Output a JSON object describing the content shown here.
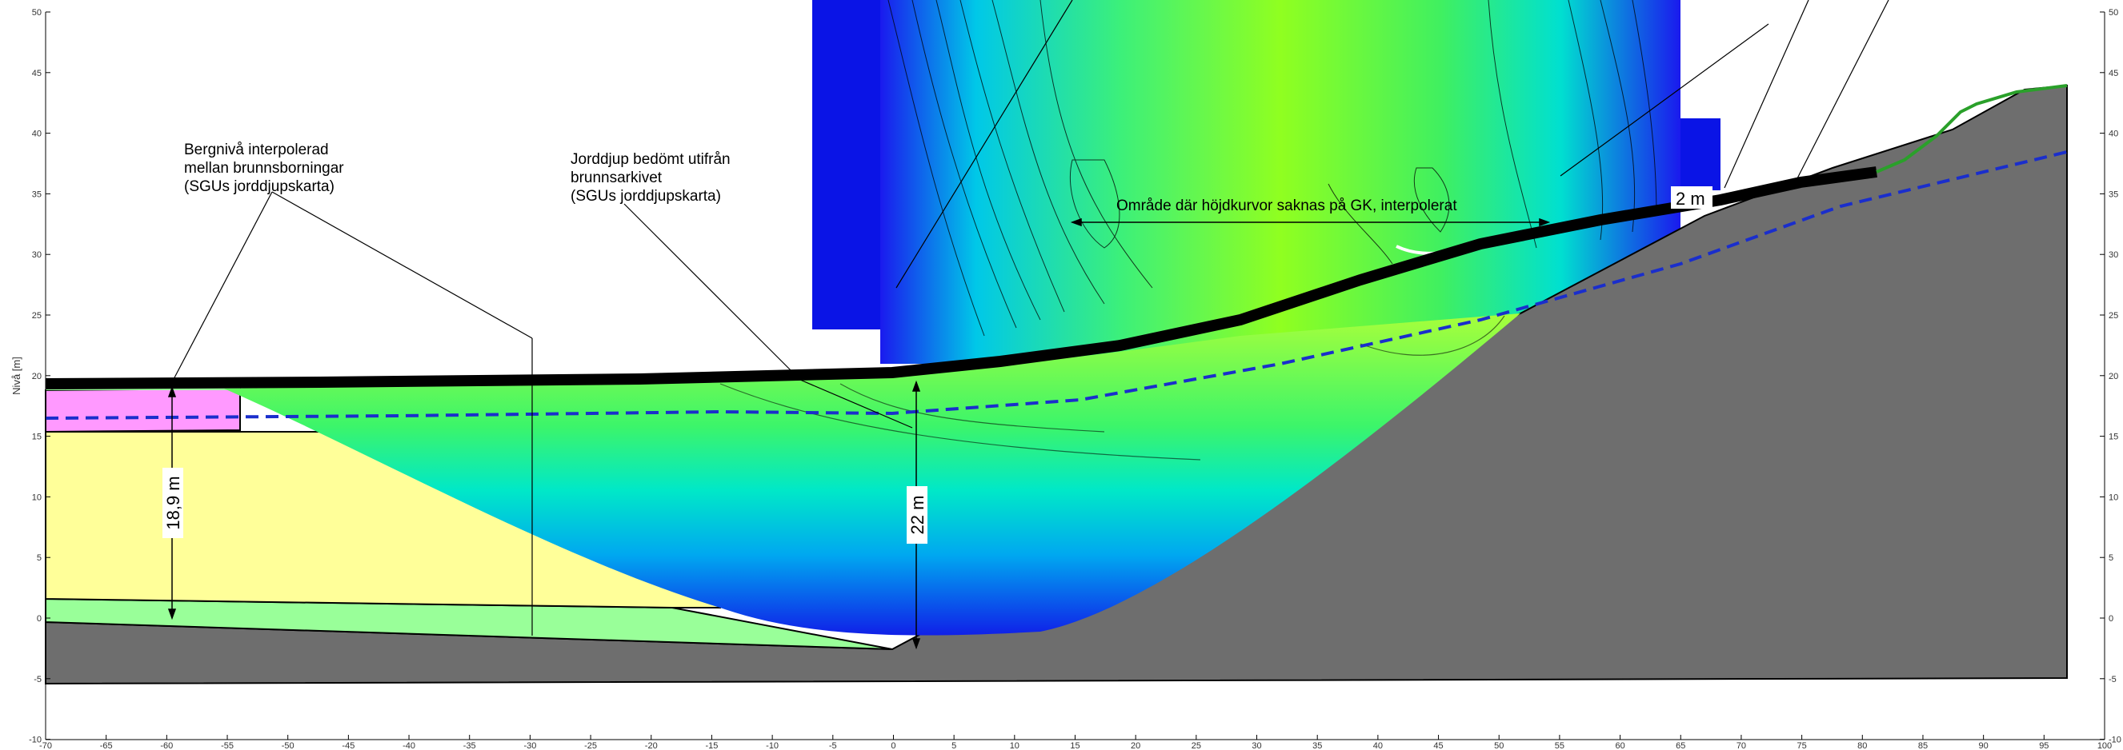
{
  "axes": {
    "y_label": "Nivå [m]",
    "x_ticks": [
      "-70",
      "-65",
      "-60",
      "-55",
      "-50",
      "-45",
      "-40",
      "-35",
      "-30",
      "-25",
      "-20",
      "-15",
      "-10",
      "-5",
      "0",
      "5",
      "10",
      "15",
      "20",
      "25",
      "30",
      "35",
      "40",
      "45",
      "50",
      "55",
      "60",
      "65",
      "70",
      "75",
      "80",
      "85",
      "90",
      "95",
      "100"
    ],
    "y_ticks": [
      "50",
      "45",
      "40",
      "35",
      "30",
      "25",
      "20",
      "15",
      "10",
      "5",
      "0",
      "-5",
      "-10"
    ]
  },
  "annotations": {
    "bedrock_note": [
      "Bergnivå interpolerad",
      "mellan  brunnsborningar",
      "(SGUs jorddjupskarta)"
    ],
    "soil_depth_note": [
      "Jorddjup bedömt utifrån",
      "brunnsarkivet",
      "(SGUs jorddjupskarta)"
    ],
    "interpolated_area_note": "Område där höjdkurvor saknas på GK, interpolerat",
    "dim_18_9": "18,9 m",
    "dim_22": "22 m",
    "dim_2": "2 m"
  },
  "colors": {
    "bedrock": "#6e6e6e",
    "clay_yellow": "#ffff99",
    "dry_crust_pink": "#ff99ff",
    "till_lightgreen": "#99ff99",
    "groundwater_line": "#1a2ecc",
    "ground_surface": "#000000",
    "contour_blue": "#0a14e6",
    "contour_cyan": "#00e6e6",
    "contour_green": "#7fff00"
  }
}
